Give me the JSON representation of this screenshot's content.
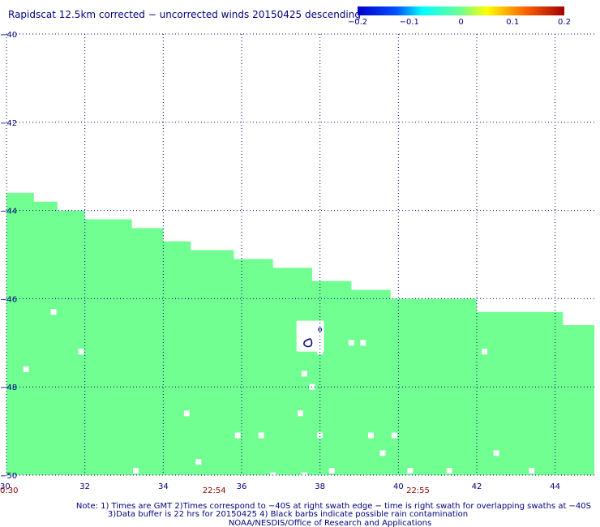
{
  "chart_data": {
    "type": "heatmap",
    "title": "Rapidscat 12.5km corrected − uncorrected winds 20150425 descending",
    "colorbar": {
      "ticks": [
        "−0.2",
        "−0.1",
        "0",
        "0.1",
        "0.2"
      ],
      "stops": [
        {
          "value": -0.2,
          "color": "#0000c8"
        },
        {
          "value": -0.125,
          "color": "#0050ff"
        },
        {
          "value": -0.075,
          "color": "#00ffff"
        },
        {
          "value": 0.0,
          "color": "#70ff90"
        },
        {
          "value": 0.05,
          "color": "#ffff00"
        },
        {
          "value": 0.125,
          "color": "#ff6000"
        },
        {
          "value": 0.2,
          "color": "#a00000"
        }
      ]
    },
    "xaxis": {
      "range": [
        30,
        45
      ],
      "ticks": [
        30,
        32,
        34,
        36,
        38,
        40,
        42,
        44
      ],
      "tick_labels": [
        "30",
        "32",
        "34",
        "36",
        "38",
        "40",
        "42",
        "44"
      ],
      "tick_label_color": "#000080"
    },
    "yaxis": {
      "range": [
        -50,
        -40
      ],
      "ticks": [
        -40,
        -42,
        -44,
        -46,
        -48,
        -50
      ],
      "tick_labels": [
        "−40",
        "−42",
        "−44",
        "−46",
        "−48",
        "−50"
      ],
      "tick_label_color": "#000080"
    },
    "grid": true,
    "times": [
      {
        "x": 30,
        "label": "0:30"
      },
      {
        "x": 35.3,
        "label": "22:54"
      },
      {
        "x": 40.5,
        "label": "22:55"
      }
    ],
    "field_value": 0.0,
    "field_color": "#70ff90",
    "swath_top_edge": [
      [
        30.0,
        -43.6
      ],
      [
        30.7,
        -43.6
      ],
      [
        30.7,
        -43.8
      ],
      [
        31.3,
        -43.8
      ],
      [
        31.3,
        -44.0
      ],
      [
        32.0,
        -44.0
      ],
      [
        32.0,
        -44.2
      ],
      [
        33.2,
        -44.2
      ],
      [
        33.2,
        -44.4
      ],
      [
        34.0,
        -44.4
      ],
      [
        34.0,
        -44.7
      ],
      [
        34.7,
        -44.7
      ],
      [
        34.7,
        -44.9
      ],
      [
        35.8,
        -44.9
      ],
      [
        35.8,
        -45.1
      ],
      [
        36.8,
        -45.1
      ],
      [
        36.8,
        -45.3
      ],
      [
        37.8,
        -45.3
      ],
      [
        37.8,
        -45.6
      ],
      [
        38.8,
        -45.6
      ],
      [
        38.8,
        -45.8
      ],
      [
        39.8,
        -45.8
      ],
      [
        39.8,
        -46.0
      ],
      [
        42.0,
        -46.0
      ],
      [
        42.0,
        -46.3
      ],
      [
        44.2,
        -46.3
      ],
      [
        44.2,
        -46.6
      ],
      [
        45.0,
        -46.6
      ]
    ],
    "missing_cells": [
      [
        31.2,
        -46.3
      ],
      [
        31.9,
        -47.2
      ],
      [
        30.5,
        -47.6
      ],
      [
        39.1,
        -47.0
      ],
      [
        38.0,
        -47.2
      ],
      [
        38.8,
        -47.0
      ],
      [
        42.2,
        -47.2
      ],
      [
        37.6,
        -47.7
      ],
      [
        37.8,
        -48.0
      ],
      [
        34.6,
        -48.6
      ],
      [
        37.5,
        -48.6
      ],
      [
        35.9,
        -49.1
      ],
      [
        36.5,
        -49.1
      ],
      [
        38.0,
        -49.1
      ],
      [
        39.3,
        -49.1
      ],
      [
        39.9,
        -49.1
      ],
      [
        39.6,
        -49.5
      ],
      [
        42.5,
        -49.5
      ],
      [
        34.9,
        -49.7
      ],
      [
        33.3,
        -49.9
      ],
      [
        38.3,
        -49.9
      ],
      [
        40.3,
        -49.9
      ],
      [
        41.3,
        -49.9
      ],
      [
        43.4,
        -49.9
      ],
      [
        36.8,
        -50.0
      ],
      [
        37.6,
        -50.0
      ]
    ],
    "gap_region": [
      37.4,
      -46.5,
      38.1,
      -47.2
    ],
    "rain_marks": [
      {
        "x": 37.8,
        "y": -47.0
      },
      {
        "x": 38.0,
        "y": -46.7
      }
    ]
  },
  "footer": {
    "note1": "Note: 1) Times are GMT 2)Times correspond to −40S at right swath edge − time is right swath for overlapping swaths at −40S",
    "note2": "3)Data buffer is 22 hrs for 20150425 4) Black barbs indicate possible rain contamination",
    "credit": "NOAA/NESDIS/Office of Research and Applications"
  }
}
